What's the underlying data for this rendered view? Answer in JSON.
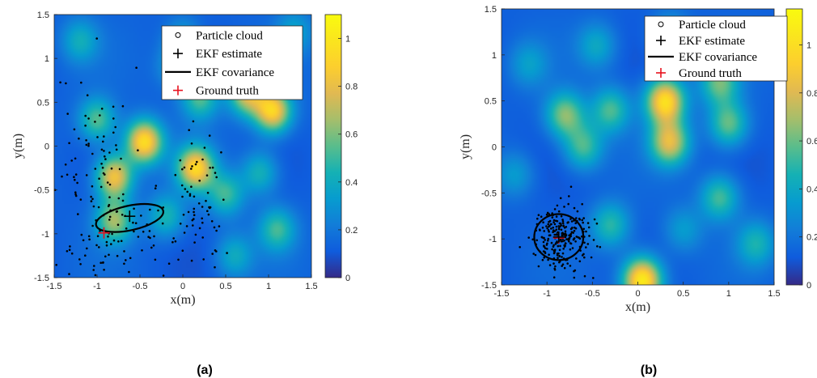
{
  "chart_data": [
    {
      "type": "heatmap",
      "panel_label": "(a)",
      "xlabel": "x(m)",
      "ylabel": "y(m)",
      "xlim": [
        -1.5,
        1.5
      ],
      "ylim": [
        -1.5,
        1.5
      ],
      "xticks": [
        "-1.5",
        "-1",
        "-0.5",
        "0",
        "0.5",
        "1",
        "1.5"
      ],
      "yticks": [
        "1.5",
        "1",
        "0.5",
        "0",
        "-0.5",
        "-1",
        "-1.5"
      ],
      "colorbar": {
        "min": 0,
        "max": 1.1,
        "ticks": [
          "1",
          "0.8",
          "0.6",
          "0.4",
          "0.2",
          "0"
        ]
      },
      "legend": {
        "placement": "top-right",
        "entries": [
          "Particle cloud",
          "EKF estimate",
          "EKF covariance",
          "Ground truth"
        ]
      },
      "ekf_estimate": [
        -0.62,
        -0.8
      ],
      "ground_truth": [
        -0.92,
        -0.99
      ],
      "ekf_covariance": {
        "center": [
          -0.62,
          -0.82
        ],
        "radius_x": 0.4,
        "radius_y": 0.14,
        "angle_deg": 12
      },
      "field_peaks": [
        {
          "x": -0.45,
          "y": 0.05,
          "value": 0.95
        },
        {
          "x": -0.8,
          "y": -0.35,
          "value": 0.85
        },
        {
          "x": -1.0,
          "y": 0.3,
          "value": 0.55
        },
        {
          "x": 0.15,
          "y": -0.25,
          "value": 0.9
        },
        {
          "x": 1.05,
          "y": 0.4,
          "value": 0.9
        },
        {
          "x": 0.75,
          "y": 0.6,
          "value": 0.75
        },
        {
          "x": 0.2,
          "y": 0.55,
          "value": 0.55
        },
        {
          "x": 0.5,
          "y": -0.55,
          "value": 0.5
        },
        {
          "x": 1.1,
          "y": -0.95,
          "value": 0.5
        },
        {
          "x": -0.8,
          "y": -0.85,
          "value": 0.65
        },
        {
          "x": -0.2,
          "y": -0.8,
          "value": 0.45
        },
        {
          "x": 0.9,
          "y": -0.3,
          "value": 0.45
        },
        {
          "x": -1.2,
          "y": 1.2,
          "value": 0.4
        },
        {
          "x": 0.0,
          "y": 1.2,
          "value": 0.4
        },
        {
          "x": 0.6,
          "y": -1.25,
          "value": 0.4
        },
        {
          "x": -0.1,
          "y": 0.9,
          "value": 0.35
        },
        {
          "x": 1.3,
          "y": 1.3,
          "value": 0.35
        }
      ],
      "particle_clusters": [
        {
          "cx": -1.05,
          "cy": 0.0,
          "sx": 0.22,
          "sy": 0.45,
          "n": 70
        },
        {
          "cx": -0.6,
          "cy": -0.95,
          "sx": 0.45,
          "sy": 0.25,
          "n": 80
        },
        {
          "cx": 0.2,
          "cy": -0.55,
          "sx": 0.16,
          "sy": 0.45,
          "n": 60
        },
        {
          "cx": -1.1,
          "cy": -1.3,
          "sx": 0.3,
          "sy": 0.15,
          "n": 30
        }
      ]
    },
    {
      "type": "heatmap",
      "panel_label": "(b)",
      "xlabel": "x(m)",
      "ylabel": "y(m)",
      "xlim": [
        -1.5,
        1.5
      ],
      "ylim": [
        -1.5,
        1.5
      ],
      "xticks": [
        "-1.5",
        "-1",
        "-0.5",
        "0",
        "0.5",
        "1",
        "1.5"
      ],
      "yticks": [
        "1.5",
        "1",
        "0.5",
        "0",
        "-0.5",
        "-1",
        "-1.5"
      ],
      "colorbar": {
        "min": 0,
        "max": 1.15,
        "ticks": [
          "1",
          "0.8",
          "0.6",
          "0.4",
          "0.2",
          "0"
        ]
      },
      "legend": {
        "placement": "top-right",
        "entries": [
          "Particle cloud",
          "EKF estimate",
          "EKF covariance",
          "Ground truth"
        ]
      },
      "ekf_estimate": [
        -0.87,
        -0.98
      ],
      "ground_truth": [
        -0.87,
        -0.99
      ],
      "ekf_covariance": {
        "center": [
          -0.87,
          -0.98
        ],
        "radius_x": 0.27,
        "radius_y": 0.25,
        "angle_deg": 0
      },
      "field_peaks": [
        {
          "x": 0.3,
          "y": 0.5,
          "value": 1.0
        },
        {
          "x": 0.35,
          "y": 0.05,
          "value": 0.8
        },
        {
          "x": 0.05,
          "y": -1.45,
          "value": 1.1
        },
        {
          "x": -0.8,
          "y": 0.35,
          "value": 0.65
        },
        {
          "x": -0.3,
          "y": 0.4,
          "value": 0.55
        },
        {
          "x": -0.6,
          "y": 0.0,
          "value": 0.55
        },
        {
          "x": 0.9,
          "y": 0.7,
          "value": 0.6
        },
        {
          "x": 1.0,
          "y": 0.25,
          "value": 0.6
        },
        {
          "x": 0.9,
          "y": -0.55,
          "value": 0.55
        },
        {
          "x": -0.3,
          "y": -0.85,
          "value": 0.5
        },
        {
          "x": 1.3,
          "y": -1.05,
          "value": 0.45
        },
        {
          "x": -1.2,
          "y": 0.9,
          "value": 0.35
        },
        {
          "x": -0.45,
          "y": 1.1,
          "value": 0.4
        },
        {
          "x": 0.35,
          "y": 1.2,
          "value": 0.45
        },
        {
          "x": -1.35,
          "y": -0.3,
          "value": 0.35
        },
        {
          "x": 0.5,
          "y": -0.9,
          "value": 0.35
        }
      ],
      "particle_clusters": [
        {
          "cx": -0.87,
          "cy": -0.98,
          "sx": 0.16,
          "sy": 0.17,
          "n": 250
        }
      ]
    }
  ]
}
